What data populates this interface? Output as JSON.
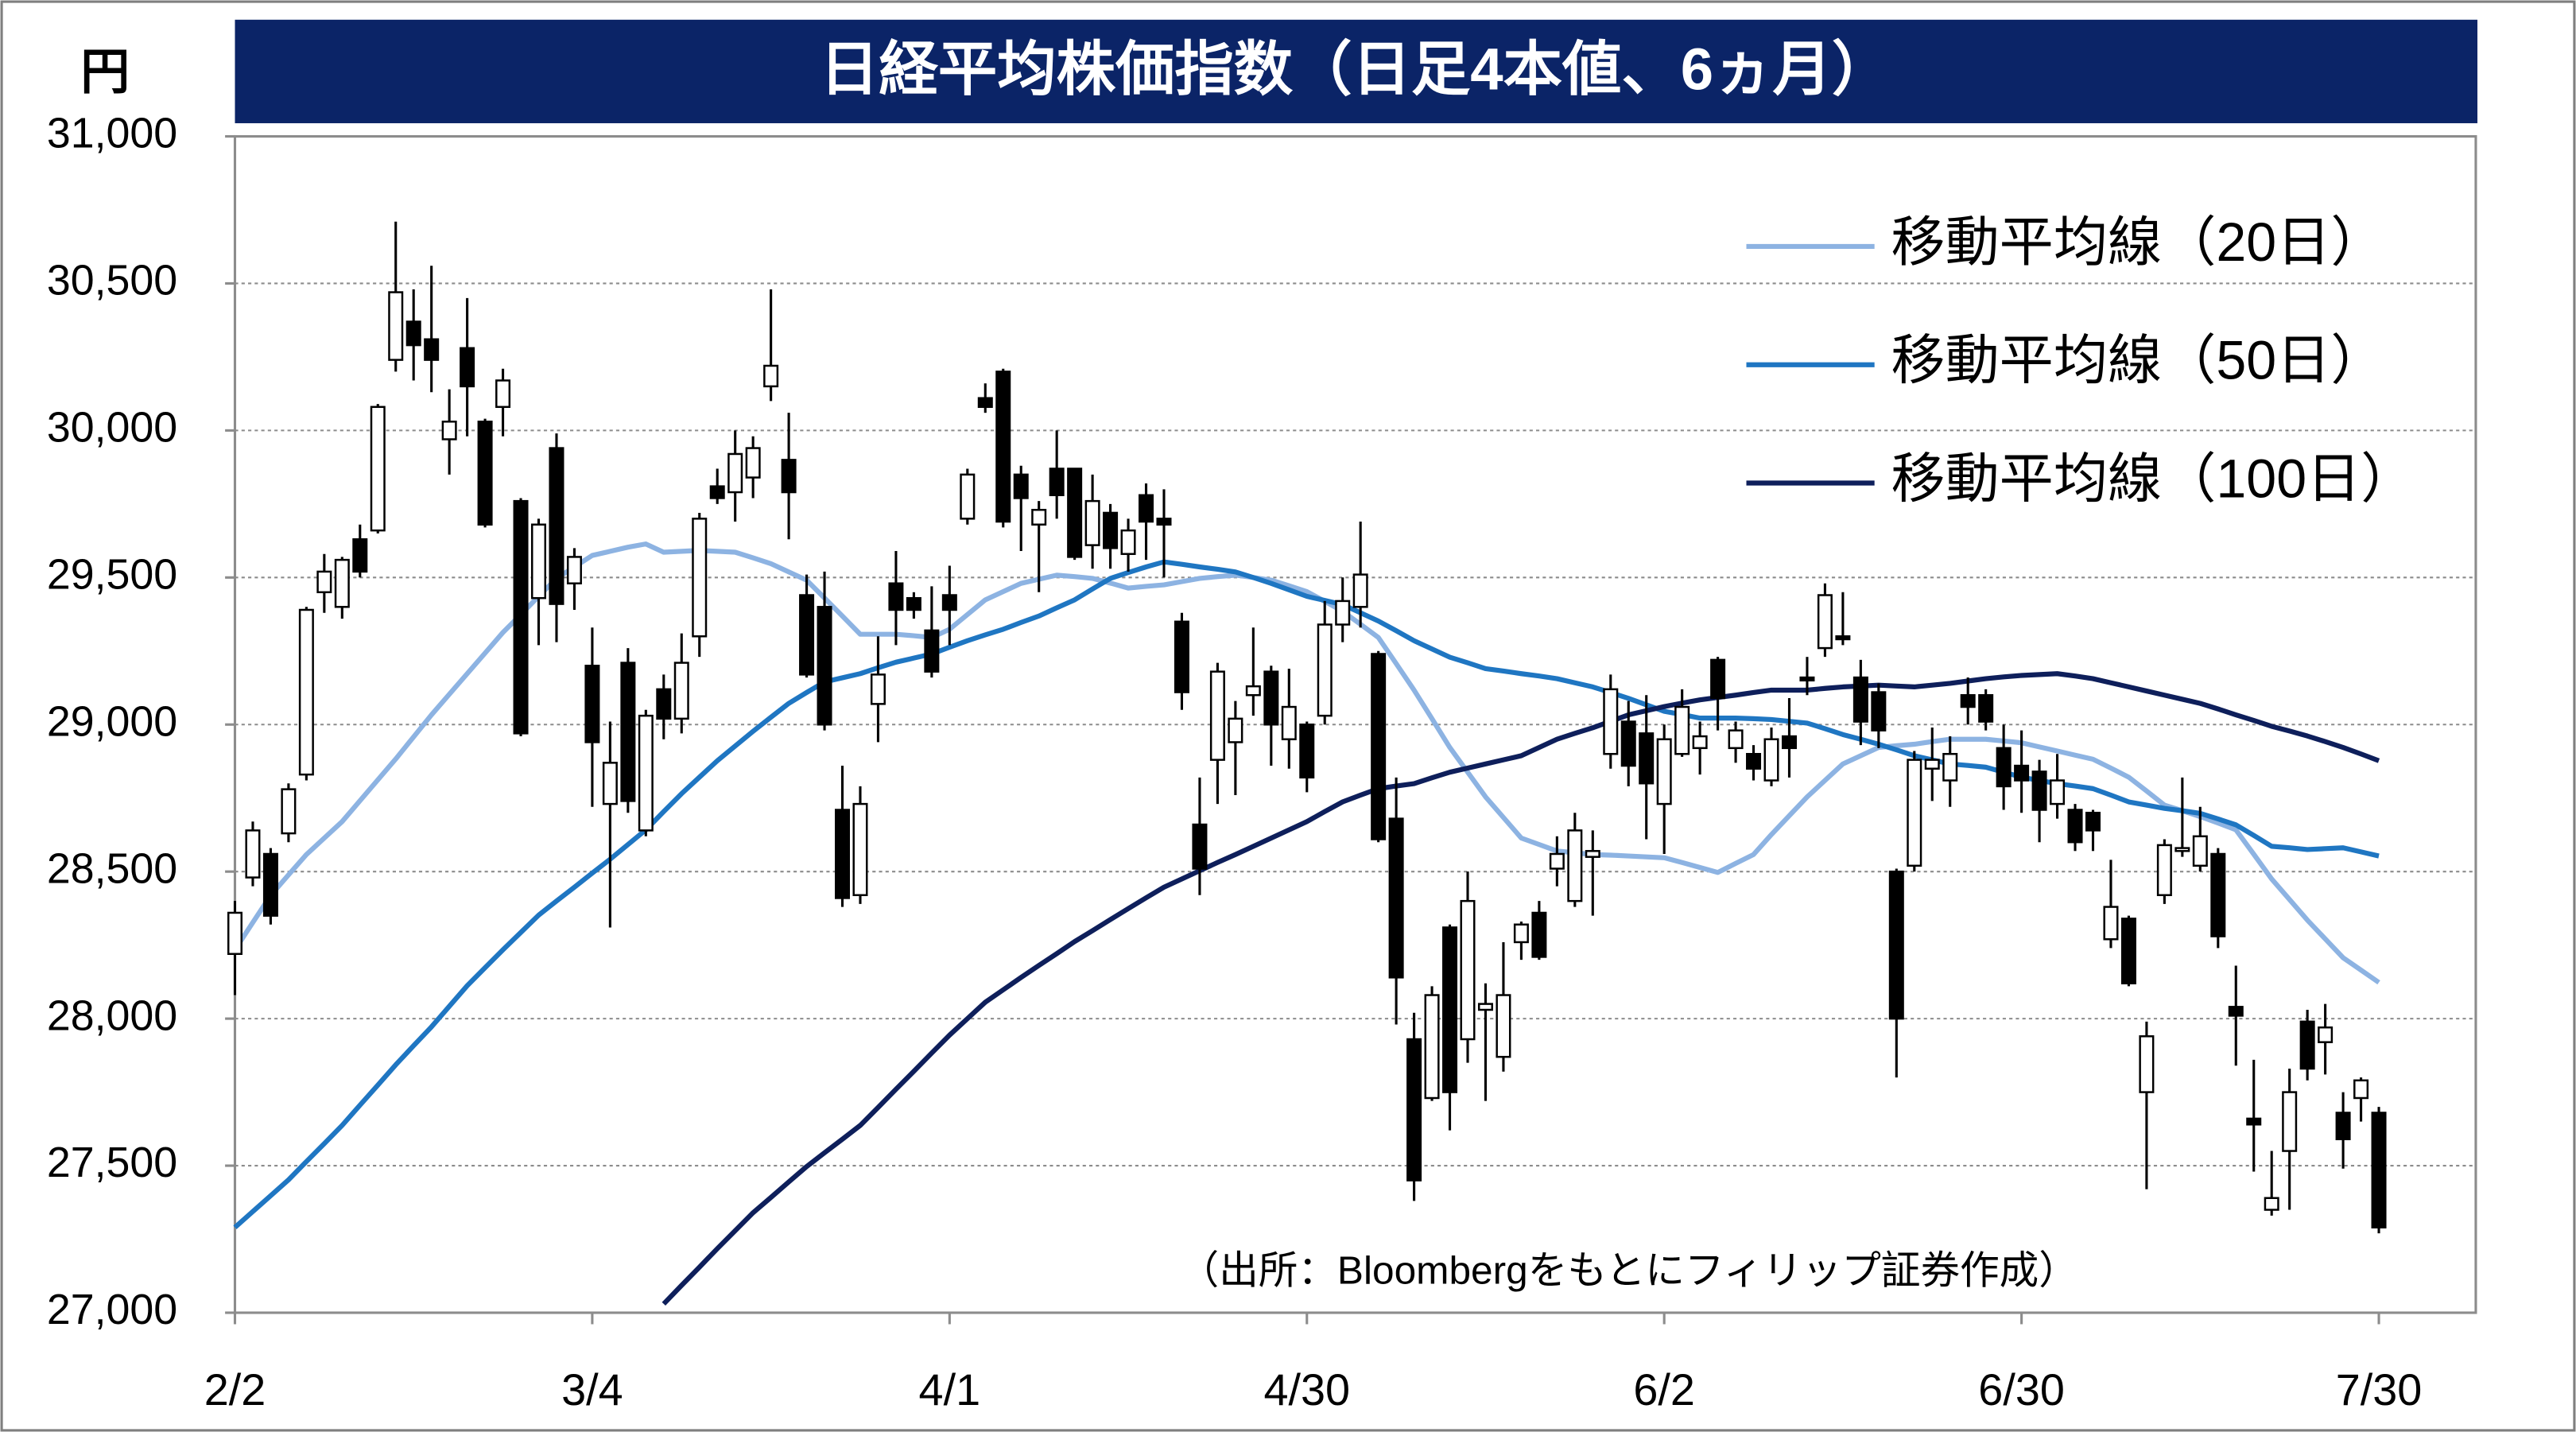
{
  "chart_data": {
    "type": "candlestick",
    "title": "日経平均株価指数（日足4本値、6ヵ月）",
    "ylabel": "円",
    "annotation": "（出所：Bloombergをもとにフィリップ証券作成）",
    "categories": [
      "2/2",
      null,
      null,
      null,
      null,
      null,
      null,
      null,
      null,
      null,
      null,
      null,
      null,
      null,
      null,
      null,
      null,
      null,
      null,
      null,
      "3/4",
      null,
      null,
      null,
      null,
      null,
      null,
      null,
      null,
      null,
      null,
      null,
      null,
      null,
      null,
      null,
      null,
      null,
      null,
      null,
      "4/1",
      null,
      null,
      null,
      null,
      null,
      null,
      null,
      null,
      null,
      null,
      null,
      null,
      null,
      null,
      null,
      null,
      null,
      null,
      null,
      "4/30",
      null,
      null,
      null,
      null,
      null,
      null,
      null,
      null,
      null,
      null,
      null,
      null,
      null,
      null,
      null,
      null,
      null,
      null,
      null,
      "6/2",
      null,
      null,
      null,
      null,
      null,
      null,
      null,
      null,
      null,
      null,
      null,
      null,
      null,
      null,
      null,
      null,
      null,
      null,
      null,
      "6/30",
      null,
      null,
      null,
      null,
      null,
      null,
      null,
      null,
      null,
      null,
      null,
      null,
      null,
      null,
      null,
      null,
      null,
      null,
      null,
      "7/30"
    ],
    "open": [
      28220,
      28480,
      28560,
      28630,
      28830,
      29450,
      29400,
      29630,
      29660,
      30240,
      30370,
      30310,
      29970,
      30280,
      30030,
      30080,
      29760,
      29430,
      29940,
      29480,
      29200,
      28730,
      29210,
      28640,
      29120,
      29020,
      29300,
      29810,
      29790,
      29840,
      30150,
      29900,
      29440,
      29400,
      28710,
      28420,
      29070,
      29480,
      29430,
      29320,
      29440,
      29700,
      30110,
      30200,
      29850,
      29680,
      29870,
      29870,
      29610,
      29720,
      29580,
      29780,
      29700,
      29350,
      28660,
      28880,
      28940,
      29100,
      29180,
      28950,
      29000,
      29030,
      29340,
      29400,
      29240,
      28680,
      27930,
      27730,
      28310,
      27930,
      28030,
      27870,
      28260,
      28360,
      28510,
      28400,
      28550,
      28900,
      29010,
      28970,
      28730,
      28900,
      28920,
      29220,
      28920,
      28900,
      28810,
      28960,
      29160,
      29260,
      29300,
      29160,
      29110,
      28500,
      28520,
      28850,
      28810,
      29100,
      29100,
      28920,
      28860,
      28840,
      28730,
      28710,
      28700,
      28270,
      28340,
      27750,
      28420,
      28570,
      28520,
      28560,
      28040,
      27660,
      27350,
      27550,
      27990,
      27920,
      27680,
      27730,
      27680
    ],
    "high": [
      28400,
      28670,
      28580,
      28800,
      29400,
      29580,
      29570,
      29680,
      30090,
      30710,
      30480,
      30560,
      30140,
      30450,
      30040,
      30210,
      29770,
      29700,
      29990,
      29600,
      29330,
      29010,
      29260,
      29050,
      29170,
      29310,
      29720,
      29870,
      30000,
      29980,
      30480,
      30060,
      29510,
      29520,
      28860,
      28790,
      29300,
      29590,
      29450,
      29470,
      29540,
      29870,
      30160,
      30210,
      29880,
      29760,
      30000,
      29870,
      29850,
      29750,
      29700,
      29820,
      29800,
      29380,
      28820,
      29210,
      29080,
      29330,
      29200,
      29190,
      29010,
      29420,
      29500,
      29690,
      29250,
      28820,
      28020,
      28110,
      28320,
      28500,
      28120,
      28260,
      28330,
      28400,
      28620,
      28700,
      28640,
      29170,
      29080,
      29100,
      29000,
      29120,
      29010,
      29230,
      29010,
      28930,
      28990,
      29090,
      29230,
      29480,
      29450,
      29220,
      29140,
      28510,
      28910,
      28990,
      28960,
      29160,
      29120,
      29000,
      28980,
      28880,
      28900,
      28730,
      28710,
      28540,
      28350,
      27990,
      28610,
      28820,
      28720,
      28580,
      28180,
      27860,
      27550,
      27830,
      28030,
      28050,
      27750,
      27800,
      27700
    ],
    "low": [
      28080,
      28450,
      28320,
      28600,
      28810,
      29380,
      29360,
      29500,
      29650,
      30200,
      30170,
      30130,
      29850,
      29980,
      29670,
      29980,
      28960,
      29270,
      29280,
      29390,
      28720,
      28310,
      28700,
      28620,
      28950,
      28970,
      29230,
      29750,
      29690,
      29770,
      30100,
      29630,
      29160,
      28980,
      28380,
      28390,
      28940,
      29270,
      29360,
      29160,
      29270,
      29680,
      30060,
      29670,
      29590,
      29450,
      29700,
      29560,
      29530,
      29530,
      29520,
      29560,
      29500,
      29050,
      28420,
      28730,
      28760,
      29030,
      28860,
      28850,
      28770,
      29000,
      29280,
      29330,
      28600,
      27980,
      27380,
      27720,
      27620,
      27850,
      27720,
      27820,
      28200,
      28200,
      28450,
      28380,
      28350,
      28850,
      28790,
      28610,
      28560,
      28890,
      28830,
      28980,
      28870,
      28810,
      28790,
      28820,
      29100,
      29230,
      29270,
      28930,
      28920,
      27800,
      28500,
      28740,
      28720,
      29000,
      28980,
      28710,
      28700,
      28600,
      28680,
      28570,
      28570,
      28240,
      28110,
      27420,
      28390,
      28550,
      28500,
      28240,
      27840,
      27480,
      27330,
      27350,
      27790,
      27810,
      27490,
      27650,
      27270
    ],
    "close": [
      28360,
      28640,
      28350,
      28780,
      29390,
      29520,
      29560,
      29520,
      30080,
      30470,
      30290,
      30240,
      30030,
      30150,
      29680,
      30170,
      28970,
      29680,
      29410,
      29570,
      28940,
      28870,
      28740,
      29030,
      29020,
      29210,
      29700,
      29770,
      29920,
      29940,
      30220,
      29790,
      29170,
      29000,
      28410,
      28730,
      29170,
      29390,
      29390,
      29180,
      29390,
      29850,
      30080,
      29690,
      29770,
      29730,
      29780,
      29570,
      29760,
      29600,
      29660,
      29690,
      29680,
      29110,
      28510,
      29180,
      29020,
      29130,
      29000,
      29060,
      28820,
      29340,
      29420,
      29510,
      28610,
      28140,
      27450,
      28080,
      27750,
      28400,
      28050,
      28080,
      28320,
      28210,
      28560,
      28640,
      28570,
      29120,
      28860,
      28800,
      28950,
      29060,
      28960,
      29090,
      28980,
      28850,
      28950,
      28920,
      29150,
      29440,
      29290,
      29010,
      28980,
      28000,
      28880,
      28880,
      28900,
      29060,
      29010,
      28790,
      28810,
      28710,
      28810,
      28600,
      28640,
      28380,
      28120,
      27940,
      28590,
      28580,
      28620,
      28280,
      28010,
      27640,
      27390,
      27750,
      27830,
      27970,
      27590,
      27790,
      27290
    ],
    "up_color": "#ffffff",
    "down_color": "#000000",
    "series": [
      {
        "name": "移動平均線（20日）",
        "color": "#8db3e2",
        "values": [
          28234,
          28327,
          28419,
          28489,
          28558,
          28614,
          28670,
          28741,
          28812,
          28883,
          28958,
          29033,
          29103,
          29173,
          29243,
          29313,
          29374,
          29436,
          29497,
          29536,
          29575,
          29589,
          29603,
          29614,
          29586,
          29589,
          29592,
          29589,
          29586,
          29567,
          29547,
          29519,
          29491,
          29430,
          29369,
          29307,
          29307,
          29307,
          29302,
          29296,
          29324,
          29374,
          29424,
          29452,
          29480,
          29494,
          29508,
          29503,
          29497,
          29481,
          29464,
          29470,
          29475,
          29486,
          29497,
          29503,
          29508,
          29500,
          29491,
          29472,
          29452,
          29419,
          29385,
          29341,
          29296,
          29207,
          29117,
          29020,
          28922,
          28838,
          28754,
          28684,
          28614,
          28592,
          28570,
          28564,
          28558,
          28556,
          28553,
          28550,
          28547,
          28531,
          28514,
          28497,
          28528,
          28558,
          28626,
          28690,
          28754,
          28810,
          28866,
          28894,
          28922,
          28928,
          28933,
          28942,
          28950,
          28950,
          28950,
          28944,
          28938,
          28924,
          28910,
          28896,
          28882,
          28852,
          28821,
          28774,
          28726,
          28707,
          28687,
          28665,
          28642,
          28559,
          28475,
          28405,
          28335,
          28271,
          28207,
          28165,
          28123
        ]
      },
      {
        "name": "移動平均線（50日）",
        "color": "#1f76c2",
        "values": [
          27290,
          27344,
          27398,
          27452,
          27514,
          27575,
          27637,
          27706,
          27774,
          27843,
          27908,
          27972,
          28042,
          28112,
          28173,
          28234,
          28293,
          28352,
          28400,
          28447,
          28495,
          28542,
          28592,
          28642,
          28704,
          28765,
          28821,
          28877,
          28927,
          28977,
          29025,
          29072,
          29109,
          29145,
          29159,
          29173,
          29193,
          29212,
          29226,
          29240,
          29263,
          29285,
          29305,
          29324,
          29347,
          29369,
          29397,
          29424,
          29461,
          29497,
          29517,
          29536,
          29553,
          29545,
          29536,
          29528,
          29519,
          29500,
          29480,
          29458,
          29436,
          29422,
          29408,
          29380,
          29352,
          29319,
          29285,
          29257,
          29229,
          29210,
          29190,
          29182,
          29173,
          29165,
          29156,
          29142,
          29128,
          29109,
          29089,
          29067,
          29045,
          29034,
          29022,
          29022,
          29022,
          29020,
          29017,
          29011,
          29005,
          28986,
          28966,
          28950,
          28933,
          28914,
          28894,
          28880,
          28866,
          28861,
          28855,
          28838,
          28821,
          28810,
          28799,
          28791,
          28782,
          28760,
          28737,
          28726,
          28715,
          28707,
          28698,
          28679,
          28659,
          28623,
          28586,
          28581,
          28575,
          28578,
          28581,
          28567,
          28553
        ]
      },
      {
        "name": "移動平均線（100日）",
        "color": "#0e1f5b",
        "values": [
          null,
          null,
          null,
          null,
          null,
          null,
          null,
          null,
          null,
          null,
          null,
          null,
          null,
          null,
          null,
          null,
          null,
          null,
          null,
          null,
          null,
          null,
          null,
          null,
          27030,
          27093,
          27155,
          27218,
          27279,
          27340,
          27392,
          27445,
          27497,
          27544,
          27590,
          27637,
          27698,
          27760,
          27821,
          27883,
          27944,
          28000,
          28056,
          28098,
          28140,
          28181,
          28221,
          28262,
          28299,
          28337,
          28374,
          28411,
          28447,
          28475,
          28503,
          28531,
          28558,
          28586,
          28614,
          28642,
          28670,
          28704,
          28737,
          28760,
          28782,
          28791,
          28799,
          28819,
          28838,
          28852,
          28866,
          28880,
          28894,
          28922,
          28950,
          28970,
          28989,
          29011,
          29033,
          29047,
          29061,
          29073,
          29084,
          29092,
          29100,
          29109,
          29117,
          29117,
          29117,
          29123,
          29128,
          29131,
          29134,
          29131,
          29128,
          29134,
          29140,
          29148,
          29156,
          29162,
          29167,
          29170,
          29173,
          29165,
          29156,
          29142,
          29128,
          29114,
          29100,
          29086,
          29072,
          29053,
          29033,
          29014,
          28994,
          28978,
          28961,
          28942,
          28922,
          28900,
          28877
        ]
      }
    ],
    "ylim": [
      27000,
      31000
    ],
    "yticks": [
      {
        "value": 27000,
        "label": "27,000"
      },
      {
        "value": 27500,
        "label": "27,500"
      },
      {
        "value": 28000,
        "label": "28,000"
      },
      {
        "value": 28500,
        "label": "28,500"
      },
      {
        "value": 29000,
        "label": "29,000"
      },
      {
        "value": 29500,
        "label": "29,500"
      },
      {
        "value": 30000,
        "label": "30,000"
      },
      {
        "value": 30500,
        "label": "30,500"
      },
      {
        "value": 31000,
        "label": "31,000"
      }
    ],
    "grid": true,
    "legend": "upper right"
  }
}
